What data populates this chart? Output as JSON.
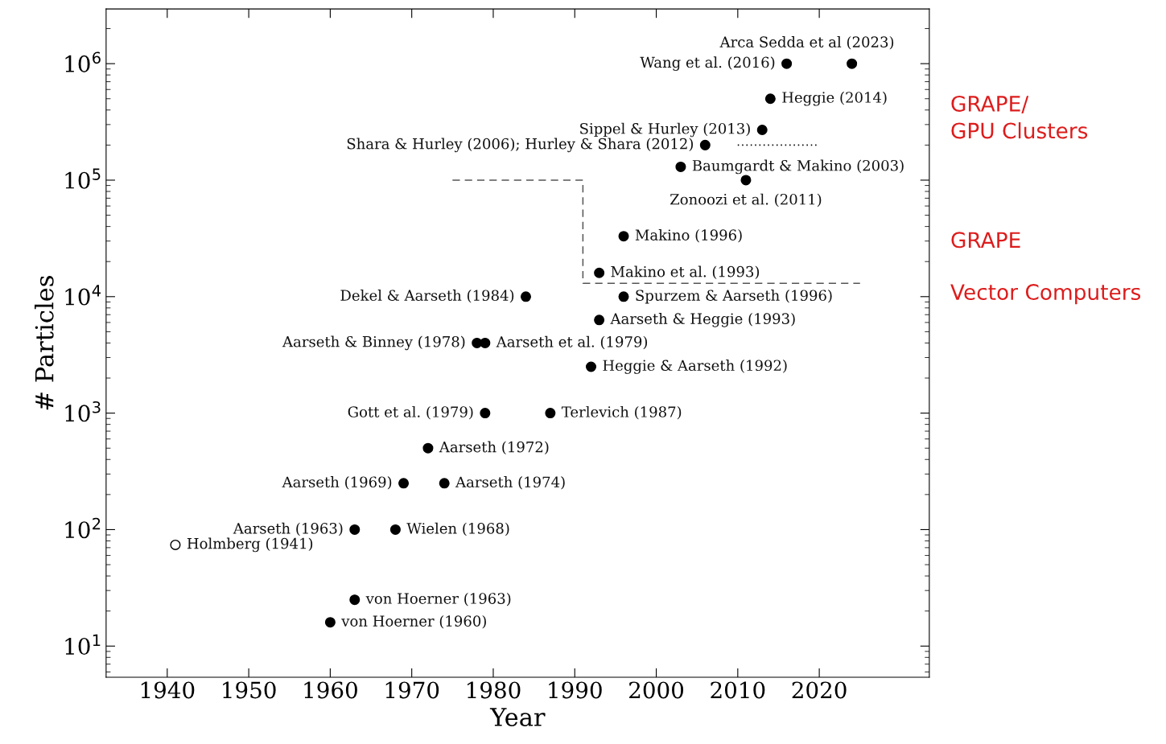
{
  "chart_data": {
    "type": "scatter",
    "xlabel": "Year",
    "ylabel": "# Particles",
    "log": "y",
    "grid": false,
    "legend": false,
    "marker": "circle",
    "xlim": [
      1932.5,
      2033.5
    ],
    "xticks": [
      1940,
      1950,
      1960,
      1970,
      1980,
      1990,
      2000,
      2010,
      2020
    ],
    "ylim": [
      5.4,
      2950000
    ],
    "yticks": [
      {
        "value": 10,
        "label": "10$^{1}$"
      },
      {
        "value": 100,
        "label": "10$^{2}$"
      },
      {
        "value": 1000,
        "label": "10$^{3}$"
      },
      {
        "value": 10000,
        "label": "10$^{4}$"
      },
      {
        "value": 100000,
        "label": "10$^{5}$"
      },
      {
        "value": 1000000,
        "label": "10$^{6}$"
      }
    ],
    "series": [
      {
        "color": "#000000",
        "x": [
          2024,
          2016,
          2014,
          2013,
          2006,
          2003,
          2011,
          1996,
          1993,
          1984,
          1996,
          1993,
          1978,
          1979,
          1992,
          1979,
          1987,
          1972,
          1969,
          1974,
          1963,
          1968,
          1963,
          1960
        ],
        "values": [
          1000000,
          1000000,
          500000,
          270000,
          200000,
          130000,
          100000,
          33000,
          16000,
          10000,
          10000,
          6300,
          4000,
          4000,
          2500,
          1000,
          1000,
          500,
          250,
          250,
          100,
          100,
          25,
          16
        ]
      },
      {
        "color": "#ffffff",
        "x": [
          1941
        ],
        "values": [
          74
        ]
      },
      {
        "type": "line",
        "marker": "none",
        "line_style": "dashed",
        "color": "#555555",
        "x": [
          1975,
          1991,
          1991,
          2025
        ],
        "values": [
          100000,
          100000,
          13000,
          13000
        ]
      },
      {
        "type": "line",
        "marker": "none",
        "line_style": "dotted",
        "color": "#000000",
        "x": [
          2010,
          2020
        ],
        "values": [
          200000,
          200000
        ]
      }
    ],
    "annotations": [
      {
        "text": "Arca Sedda et al (2023)",
        "x": 2024,
        "y": 1000000
      },
      {
        "text": "Wang et al. (2016)",
        "x": 2016,
        "y": 1000000
      },
      {
        "text": "Heggie (2014)",
        "x": 2014,
        "y": 500000
      },
      {
        "text": "Sippel & Hurley (2013)",
        "x": 2013,
        "y": 270000
      },
      {
        "text": "Shara & Hurley (2006); Hurley & Shara (2012)",
        "x": 2006,
        "y": 200000
      },
      {
        "text": "Baumgardt & Makino (2003)",
        "x": 2003,
        "y": 130000
      },
      {
        "text": "Zonoozi et al. (2011)",
        "x": 2011,
        "y": 100000
      },
      {
        "text": "Makino (1996)",
        "x": 1996,
        "y": 33000
      },
      {
        "text": "Makino et al. (1993)",
        "x": 1993,
        "y": 16000
      },
      {
        "text": "Dekel & Aarseth (1984)",
        "x": 1984,
        "y": 10000
      },
      {
        "text": "Spurzem & Aarseth (1996)",
        "x": 1996,
        "y": 10000
      },
      {
        "text": "Aarseth & Heggie (1993)",
        "x": 1993,
        "y": 6300
      },
      {
        "text": "Aarseth & Binney (1978)",
        "x": 1978,
        "y": 4000
      },
      {
        "text": "Aarseth et al. (1979)",
        "x": 1979,
        "y": 4000
      },
      {
        "text": "Heggie & Aarseth (1992)",
        "x": 1992,
        "y": 2500
      },
      {
        "text": "Gott et al. (1979)",
        "x": 1979,
        "y": 1000
      },
      {
        "text": "Terlevich (1987)",
        "x": 1987,
        "y": 1000
      },
      {
        "text": "Aarseth (1972)",
        "x": 1972,
        "y": 500
      },
      {
        "text": "Aarseth (1969)",
        "x": 1969,
        "y": 250
      },
      {
        "text": "Aarseth (1974)",
        "x": 1974,
        "y": 250
      },
      {
        "text": "Aarseth (1963)",
        "x": 1963,
        "y": 100
      },
      {
        "text": "Wielen (1968)",
        "x": 1968,
        "y": 100
      },
      {
        "text": "Holmberg (1941)",
        "x": 1941,
        "y": 74
      },
      {
        "text": "von Hoerner (1963)",
        "x": 1963,
        "y": 25
      },
      {
        "text": "von Hoerner (1960)",
        "x": 1960,
        "y": 16
      },
      "GRAPE/\nGPU Clusters",
      "GRAPE",
      "Vector Computers"
    ]
  }
}
